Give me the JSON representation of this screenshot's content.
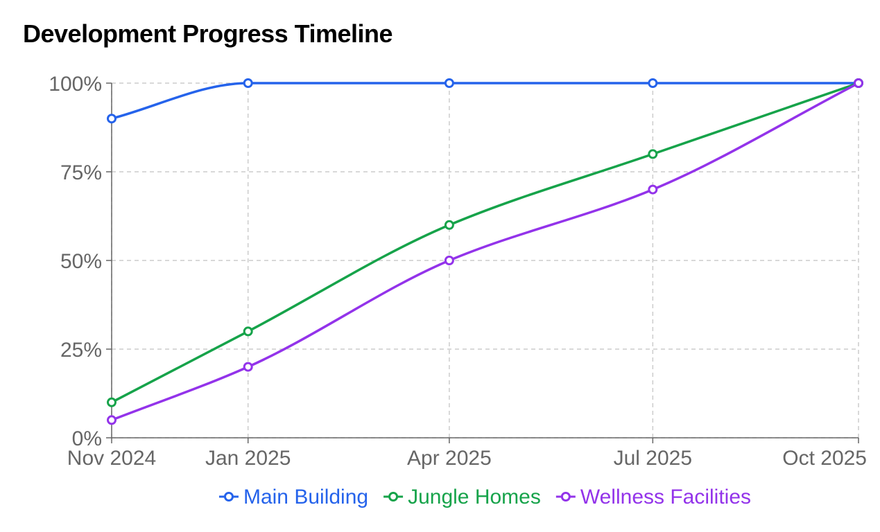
{
  "title": "Development Progress Timeline",
  "chart_data": {
    "type": "line",
    "title": "Development Progress Timeline",
    "xlabel": "",
    "ylabel": "",
    "x": [
      "2024-11-01",
      "2025-01-01",
      "2025-04-01",
      "2025-07-01",
      "2025-10-01"
    ],
    "x_tick_labels": [
      "Nov 2024",
      "Jan 2025",
      "Apr 2025",
      "Jul 2025",
      "Oct 2025"
    ],
    "y_tick_labels": [
      "0%",
      "25%",
      "50%",
      "75%",
      "100%"
    ],
    "y_ticks": [
      0,
      25,
      50,
      75,
      100
    ],
    "ylim": [
      0,
      100
    ],
    "grid": true,
    "legend": "bottom",
    "series": [
      {
        "name": "Main Building",
        "color": "#2563eb",
        "values": [
          90,
          100,
          100,
          100,
          100
        ]
      },
      {
        "name": "Jungle Homes",
        "color": "#16a34a",
        "values": [
          10,
          30,
          60,
          80,
          100
        ]
      },
      {
        "name": "Wellness Facilities",
        "color": "#9333ea",
        "values": [
          5,
          20,
          50,
          70,
          100
        ]
      }
    ]
  }
}
